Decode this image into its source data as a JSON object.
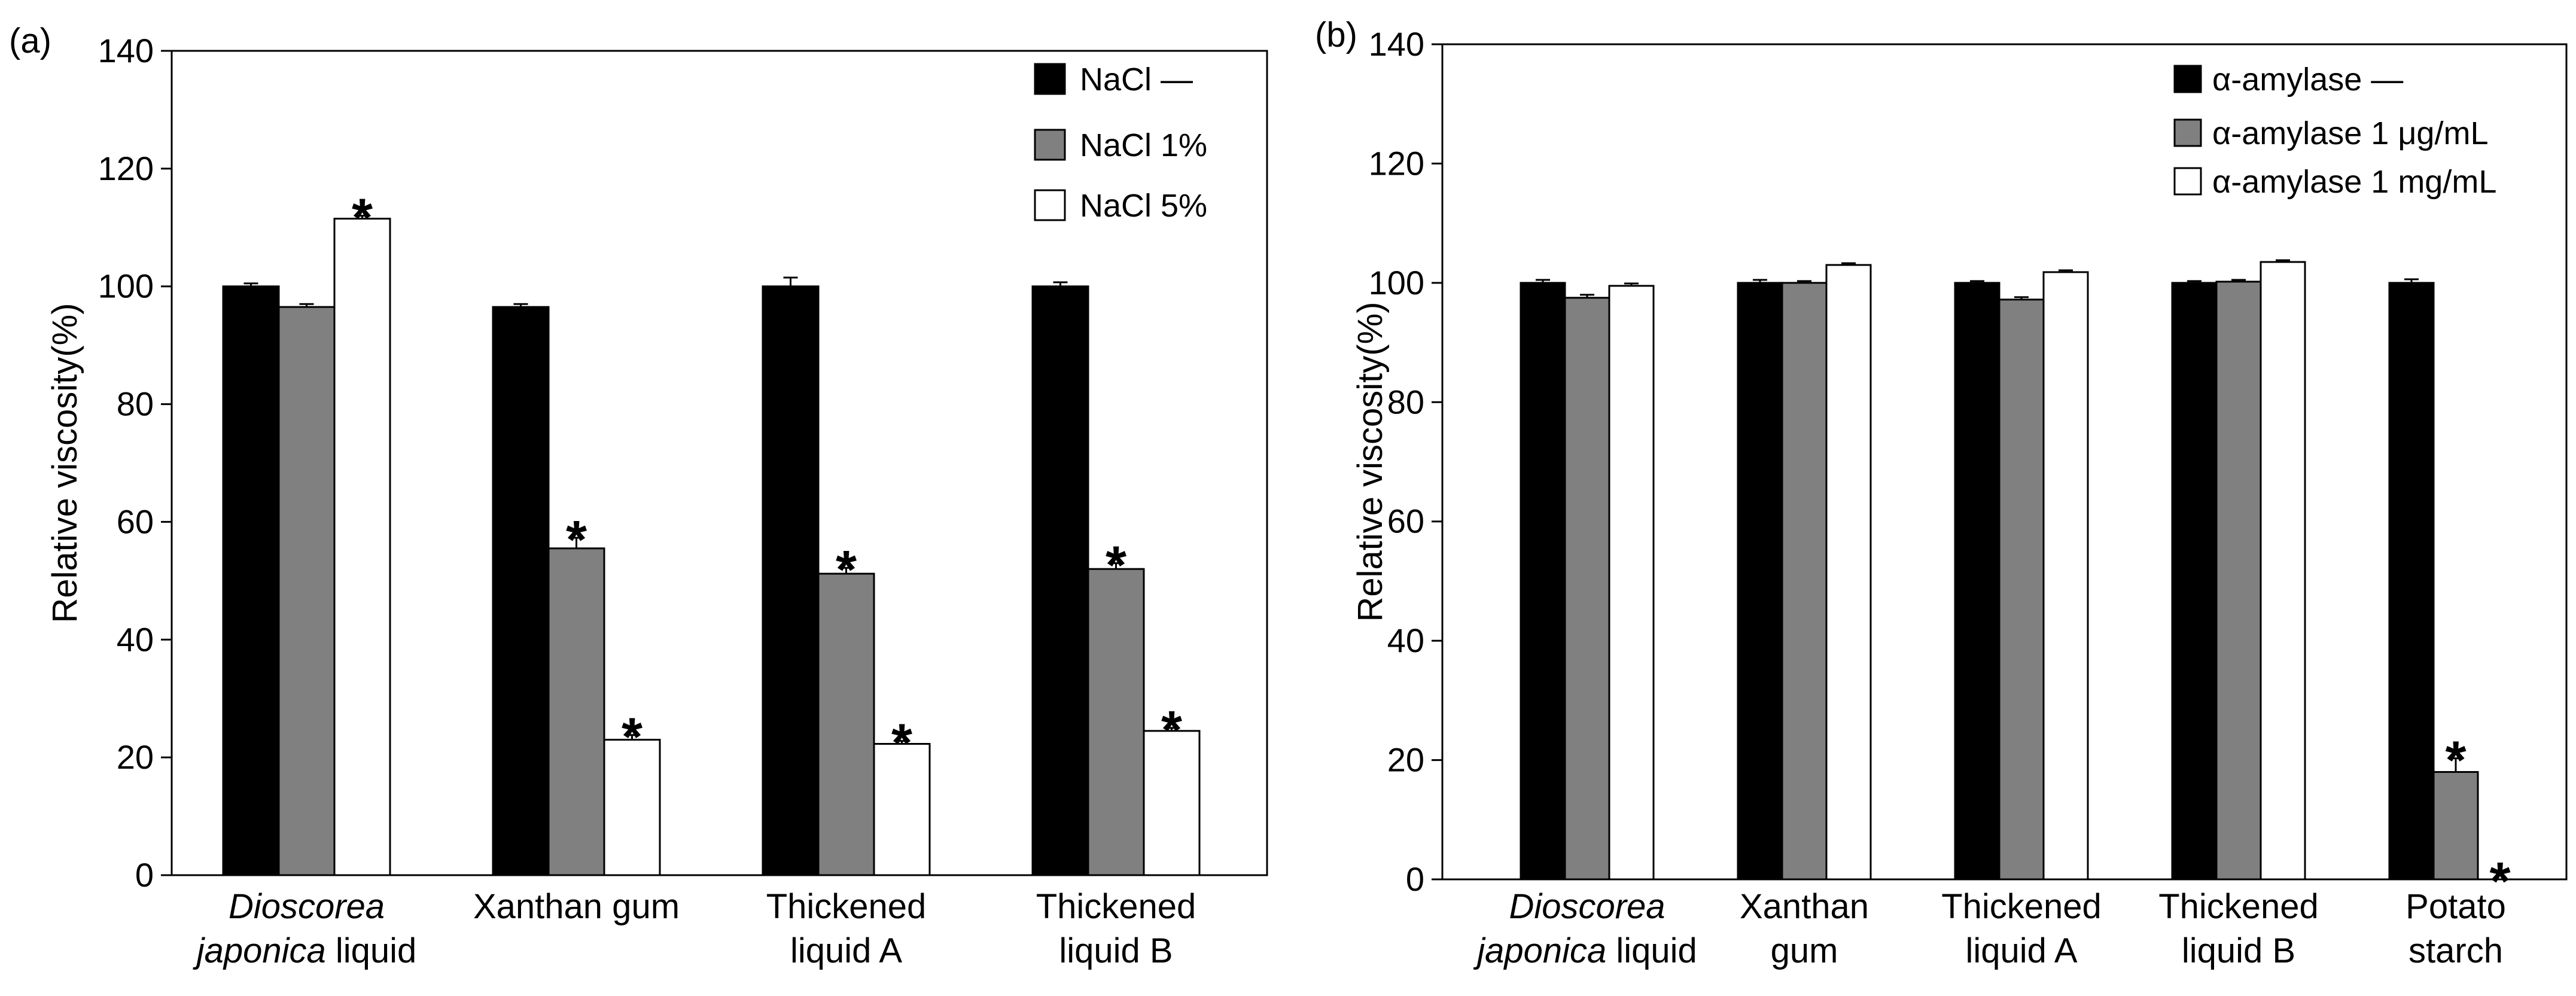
{
  "chart_data": [
    {
      "type": "bar",
      "panel_label": "(a)",
      "ylabel": "Relative viscosity(%)",
      "ylim": [
        0,
        140
      ],
      "yticks": [
        0,
        20,
        40,
        60,
        80,
        100,
        120,
        140
      ],
      "categories": [
        {
          "lines": [
            [
              {
                "t": "Dioscorea",
                "i": true
              }
            ],
            [
              {
                "t": "japonica",
                "i": true
              },
              {
                "t": " liquid",
                "i": false
              }
            ]
          ]
        },
        {
          "lines": [
            [
              {
                "t": "Xanthan gum",
                "i": false
              }
            ]
          ]
        },
        {
          "lines": [
            [
              {
                "t": "Thickened",
                "i": false
              }
            ],
            [
              {
                "t": "liquid A",
                "i": false
              }
            ]
          ]
        },
        {
          "lines": [
            [
              {
                "t": "Thickened",
                "i": false
              }
            ],
            [
              {
                "t": "liquid B",
                "i": false
              }
            ]
          ]
        }
      ],
      "series": [
        {
          "name": "NaCl —",
          "color": "#000000",
          "values": [
            100,
            96.5,
            100,
            100
          ],
          "errors": [
            0.5,
            0.5,
            1.5,
            0.7
          ],
          "significant": [
            false,
            false,
            false,
            false
          ]
        },
        {
          "name": "NaCl 1%",
          "color": "#808080",
          "values": [
            96.5,
            55.5,
            51.2,
            52.0
          ],
          "errors": [
            0.5,
            1.8,
            1.0,
            1.0
          ],
          "significant": [
            false,
            true,
            true,
            true
          ]
        },
        {
          "name": "NaCl 5%",
          "color": "#ffffff",
          "values": [
            111.5,
            23.0,
            22.3,
            24.5
          ],
          "errors": [
            0.5,
            0.8,
            0.5,
            0.5
          ],
          "significant": [
            true,
            true,
            true,
            true
          ]
        }
      ],
      "significance_marker": "*",
      "legend_position": "top-right"
    },
    {
      "type": "bar",
      "panel_label": "(b)",
      "ylabel": "Relative viscosity(%)",
      "ylim": [
        0,
        140
      ],
      "yticks": [
        0,
        20,
        40,
        60,
        80,
        100,
        120,
        140
      ],
      "categories": [
        {
          "lines": [
            [
              {
                "t": "Dioscorea",
                "i": true
              }
            ],
            [
              {
                "t": "japonica",
                "i": true
              },
              {
                "t": " liquid",
                "i": false
              }
            ]
          ]
        },
        {
          "lines": [
            [
              {
                "t": "Xanthan",
                "i": false
              }
            ],
            [
              {
                "t": "gum",
                "i": false
              }
            ]
          ]
        },
        {
          "lines": [
            [
              {
                "t": "Thickened",
                "i": false
              }
            ],
            [
              {
                "t": "liquid A",
                "i": false
              }
            ]
          ]
        },
        {
          "lines": [
            [
              {
                "t": "Thickened",
                "i": false
              }
            ],
            [
              {
                "t": "liquid B",
                "i": false
              }
            ]
          ]
        },
        {
          "lines": [
            [
              {
                "t": "Potato",
                "i": false
              }
            ],
            [
              {
                "t": "starch",
                "i": false
              }
            ]
          ]
        }
      ],
      "series": [
        {
          "name": "α-amylase —",
          "color": "#000000",
          "values": [
            100,
            100,
            100,
            100,
            100
          ],
          "errors": [
            0.5,
            0.5,
            0.3,
            0.3,
            0.6
          ],
          "significant": [
            false,
            false,
            false,
            false,
            false
          ]
        },
        {
          "name": "α-amylase 1 μg/mL",
          "color": "#808080",
          "values": [
            97.5,
            100,
            97.2,
            100.2,
            18.0
          ],
          "errors": [
            0.5,
            0.3,
            0.4,
            0.3,
            2.3
          ],
          "significant": [
            false,
            false,
            false,
            false,
            true
          ]
        },
        {
          "name": "α-amylase 1 mg/mL",
          "color": "#ffffff",
          "values": [
            99.5,
            103,
            101.8,
            103.5,
            0
          ],
          "errors": [
            0.4,
            0.3,
            0.3,
            0.3,
            0
          ],
          "significant": [
            false,
            false,
            false,
            false,
            true
          ]
        }
      ],
      "significance_marker": "*",
      "legend_position": "top-right"
    }
  ]
}
